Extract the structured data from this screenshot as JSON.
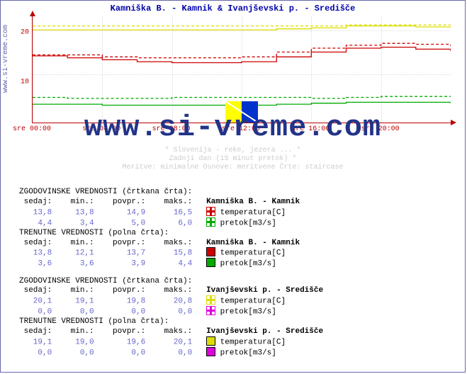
{
  "title": "Kamniška B. - Kamnik & Ivanjševski p. - Središče",
  "side_text": "www.si-vreme.com",
  "watermark": "www.si-vreme.com",
  "subcaption1": "* Slovenija - reke, jezera ... *",
  "subcaption2": "Zadnji dan (15 minut pretok) *",
  "subcaption3": "Meritve: minimalne  Osnove: meritvene  Črte: staircase",
  "chart": {
    "type": "line",
    "ylim": [
      0,
      22
    ],
    "ytick_values": [
      10,
      20
    ],
    "xlabels": [
      "sre 00:00",
      "sre 04:00",
      "sre 08:00",
      "sre 12:00",
      "sre 16:00",
      "sre 20:00"
    ],
    "background_color": "#ffffff",
    "grid_color": "#dddddd",
    "axis_color": "#bb0000",
    "series_kamnik_temp_hist": {
      "color": "#cc0000",
      "dashed": true,
      "y": [
        14.0,
        14.0,
        13.6,
        13.4,
        13.4,
        13.4,
        13.6,
        14.6,
        15.4,
        16.0,
        16.4,
        16.2,
        15.8
      ]
    },
    "series_kamnik_temp_now": {
      "color": "#cc0000",
      "dashed": false,
      "y": [
        13.8,
        13.4,
        13.0,
        12.6,
        12.4,
        12.4,
        12.6,
        13.6,
        14.6,
        15.4,
        15.6,
        15.2,
        14.8
      ]
    },
    "series_kamnik_flow_hist": {
      "color": "#00aa00",
      "dashed": true,
      "y": [
        5.2,
        5.0,
        5.0,
        5.0,
        5.2,
        5.2,
        5.2,
        5.2,
        5.0,
        5.2,
        5.4,
        5.4,
        5.4
      ]
    },
    "series_kamnik_flow_now": {
      "color": "#00aa00",
      "dashed": false,
      "y": [
        3.8,
        3.8,
        3.6,
        3.6,
        3.6,
        3.6,
        3.6,
        3.8,
        4.0,
        4.2,
        4.2,
        4.2,
        4.0
      ]
    },
    "series_ivan_temp_hist": {
      "color": "#dddd00",
      "dashed": true,
      "y": [
        20.0,
        20.0,
        20.0,
        20.0,
        20.0,
        20.0,
        20.0,
        20.0,
        20.0,
        20.2,
        20.2,
        20.2,
        20.0
      ]
    },
    "series_ivan_temp_now": {
      "color": "#dddd00",
      "dashed": false,
      "y": [
        19.2,
        19.2,
        19.2,
        19.2,
        19.2,
        19.2,
        19.2,
        19.4,
        19.6,
        20.0,
        20.0,
        19.8,
        19.6
      ]
    }
  },
  "tables": {
    "head_hist": "ZGODOVINSKE VREDNOSTI (črtkana črta):",
    "head_now": "TRENUTNE VREDNOSTI (polna črta):",
    "cols": " sedaj:    min.:    povpr.:    maks.:",
    "station1": "Kamniška B. - Kamnik",
    "station2": "Ivanjševski p. - Središče",
    "leg_temp": "temperatura[C]",
    "leg_flow": "pretok[m3/s]",
    "kamnik_hist_temp": [
      "13,8",
      "13,8",
      "14,9",
      "16,5"
    ],
    "kamnik_hist_flow": [
      "4,4",
      "3,4",
      "5,0",
      "6,0"
    ],
    "kamnik_now_temp": [
      "13,8",
      "12,1",
      "13,7",
      "15,8"
    ],
    "kamnik_now_flow": [
      "3,6",
      "3,6",
      "3,9",
      "4,4"
    ],
    "ivan_hist_temp": [
      "20,1",
      "19,1",
      "19,8",
      "20,8"
    ],
    "ivan_hist_flow": [
      "0,0",
      "0,0",
      "0,0",
      "0,0"
    ],
    "ivan_now_temp": [
      "19,1",
      "19,0",
      "19,6",
      "20,1"
    ],
    "ivan_now_flow": [
      "0,0",
      "0,0",
      "0,0",
      "0,0"
    ]
  },
  "colors": {
    "kamnik_temp": "#cc0000",
    "kamnik_flow": "#00aa00",
    "ivan_temp": "#dddd00",
    "ivan_flow": "#dd00dd",
    "kamnik_temp_hist_sw": "#cc0000",
    "kamnik_flow_hist_sw": "#00aa00",
    "ivan_temp_hist_sw": "#dddd00",
    "ivan_flow_hist_sw": "#dd00dd"
  }
}
